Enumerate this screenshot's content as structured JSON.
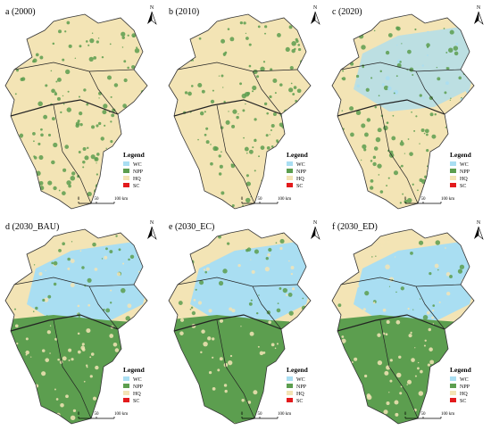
{
  "panels": [
    {
      "label": "a (2000)"
    },
    {
      "label": "b (2010)"
    },
    {
      "label": "c (2020)"
    },
    {
      "label": "d (2030_BAU)"
    },
    {
      "label": "e (2030_EC)"
    },
    {
      "label": "f (2030_ED)"
    }
  ],
  "legend": {
    "title": "Legend",
    "items": [
      {
        "label": "WC",
        "color": "#a9def2"
      },
      {
        "label": "NPP",
        "color": "#5c9e4f"
      },
      {
        "label": "HQ",
        "color": "#f3e4b5"
      },
      {
        "label": "SC",
        "color": "#e31a1c"
      }
    ]
  },
  "scale_bar": {
    "labels": [
      "0",
      "50",
      "100 km"
    ]
  },
  "north_arrow": "N"
}
